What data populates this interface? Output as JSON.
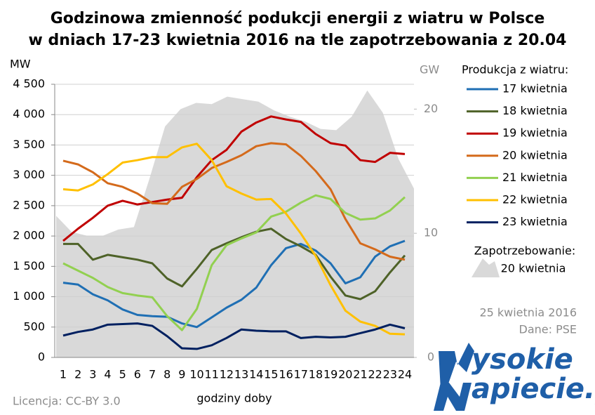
{
  "chart_data": {
    "type": "line",
    "title": "Godzinowa zmienność podukcji energii z wiatru  w Polsce",
    "subtitle": "w dniach 17-23 kwietnia 2016 na tle zapotrzebowania z 20.04",
    "y_label": "MW",
    "y2_label": "GW",
    "x_label": "godziny doby",
    "legend_title": "Produkcja  z wiatru:",
    "date": "25 kwietnia 2016",
    "source": "Dane: PSE",
    "license": "Licencja: CC-BY 3.0",
    "logo": [
      "ysokie",
      "apiecie.pl"
    ],
    "categories": [
      "1",
      "2",
      "3",
      "4",
      "5",
      "6",
      "7",
      "8",
      "9",
      "10",
      "11",
      "12",
      "13",
      "14",
      "15",
      "16",
      "17",
      "18",
      "19",
      "20",
      "21",
      "22",
      "23",
      "24"
    ],
    "ylim": [
      0,
      4500
    ],
    "yticks": [
      0,
      {
        "value": 500,
        "label": "500"
      },
      {
        "value": 1000,
        "label": "1 000"
      },
      {
        "value": 1500,
        "label": "1 500"
      },
      {
        "value": 2000,
        "label": "2 000"
      },
      {
        "value": 2500,
        "label": "2 500"
      },
      {
        "value": 3000,
        "label": "3 000"
      },
      {
        "value": 3500,
        "label": "3 500"
      },
      {
        "value": 4000,
        "label": "4 000"
      },
      {
        "value": 4500,
        "label": "4 500"
      }
    ],
    "y2lim": [
      0,
      22
    ],
    "y2ticks": [
      0,
      10,
      20
    ],
    "grid": true,
    "area": {
      "name": "Zapotrzebowanie:",
      "name_line2": "20 kwietnia",
      "color": "#d9d9d9",
      "axis": "y2",
      "values": [
        11.4,
        10.1,
        9.8,
        9.8,
        10.3,
        10.5,
        14.4,
        18.6,
        20.0,
        20.5,
        20.4,
        21.0,
        20.8,
        20.6,
        19.9,
        19.4,
        19.0,
        18.4,
        18.3,
        19.4,
        21.5,
        19.7,
        16.0,
        13.6
      ]
    },
    "series": [
      {
        "name": "17 kwietnia",
        "color": "#1f6fb4",
        "values": [
          1230,
          1200,
          1040,
          940,
          790,
          700,
          680,
          670,
          560,
          500,
          660,
          820,
          950,
          1150,
          1520,
          1800,
          1870,
          1760,
          1550,
          1220,
          1320,
          1660,
          1830,
          1920
        ]
      },
      {
        "name": "18 kwietnia",
        "color": "#4e6228",
        "values": [
          1870,
          1870,
          1610,
          1690,
          1650,
          1610,
          1550,
          1300,
          1170,
          1460,
          1770,
          1880,
          1980,
          2070,
          2120,
          1950,
          1830,
          1690,
          1330,
          1020,
          960,
          1090,
          1400,
          1680
        ]
      },
      {
        "name": "19 kwietnia",
        "color": "#c00000",
        "values": [
          1920,
          2120,
          2300,
          2500,
          2580,
          2520,
          2560,
          2600,
          2630,
          2970,
          3250,
          3420,
          3720,
          3870,
          3970,
          3920,
          3880,
          3680,
          3530,
          3490,
          3250,
          3220,
          3370,
          3350
        ]
      },
      {
        "name": "20 kwietnia",
        "color": "#d46a1b",
        "values": [
          3240,
          3180,
          3050,
          2870,
          2810,
          2700,
          2540,
          2530,
          2810,
          2940,
          3120,
          3220,
          3330,
          3480,
          3530,
          3510,
          3320,
          3070,
          2770,
          2280,
          1880,
          1780,
          1660,
          1610
        ]
      },
      {
        "name": "21 kwietnia",
        "color": "#92d050",
        "values": [
          1550,
          1430,
          1310,
          1160,
          1060,
          1020,
          990,
          680,
          450,
          800,
          1520,
          1850,
          1960,
          2060,
          2320,
          2400,
          2550,
          2670,
          2610,
          2380,
          2270,
          2290,
          2420,
          2640
        ]
      },
      {
        "name": "22 kwietnia",
        "color": "#ffc000",
        "values": [
          2770,
          2750,
          2850,
          3020,
          3210,
          3250,
          3300,
          3300,
          3460,
          3520,
          3250,
          2820,
          2700,
          2600,
          2610,
          2370,
          2040,
          1670,
          1190,
          770,
          590,
          520,
          390,
          380
        ]
      },
      {
        "name": "23 kwietnia",
        "color": "#002060",
        "values": [
          360,
          420,
          460,
          540,
          550,
          560,
          520,
          350,
          150,
          140,
          200,
          320,
          460,
          440,
          430,
          430,
          320,
          340,
          330,
          340,
          400,
          460,
          540,
          480
        ]
      }
    ]
  }
}
